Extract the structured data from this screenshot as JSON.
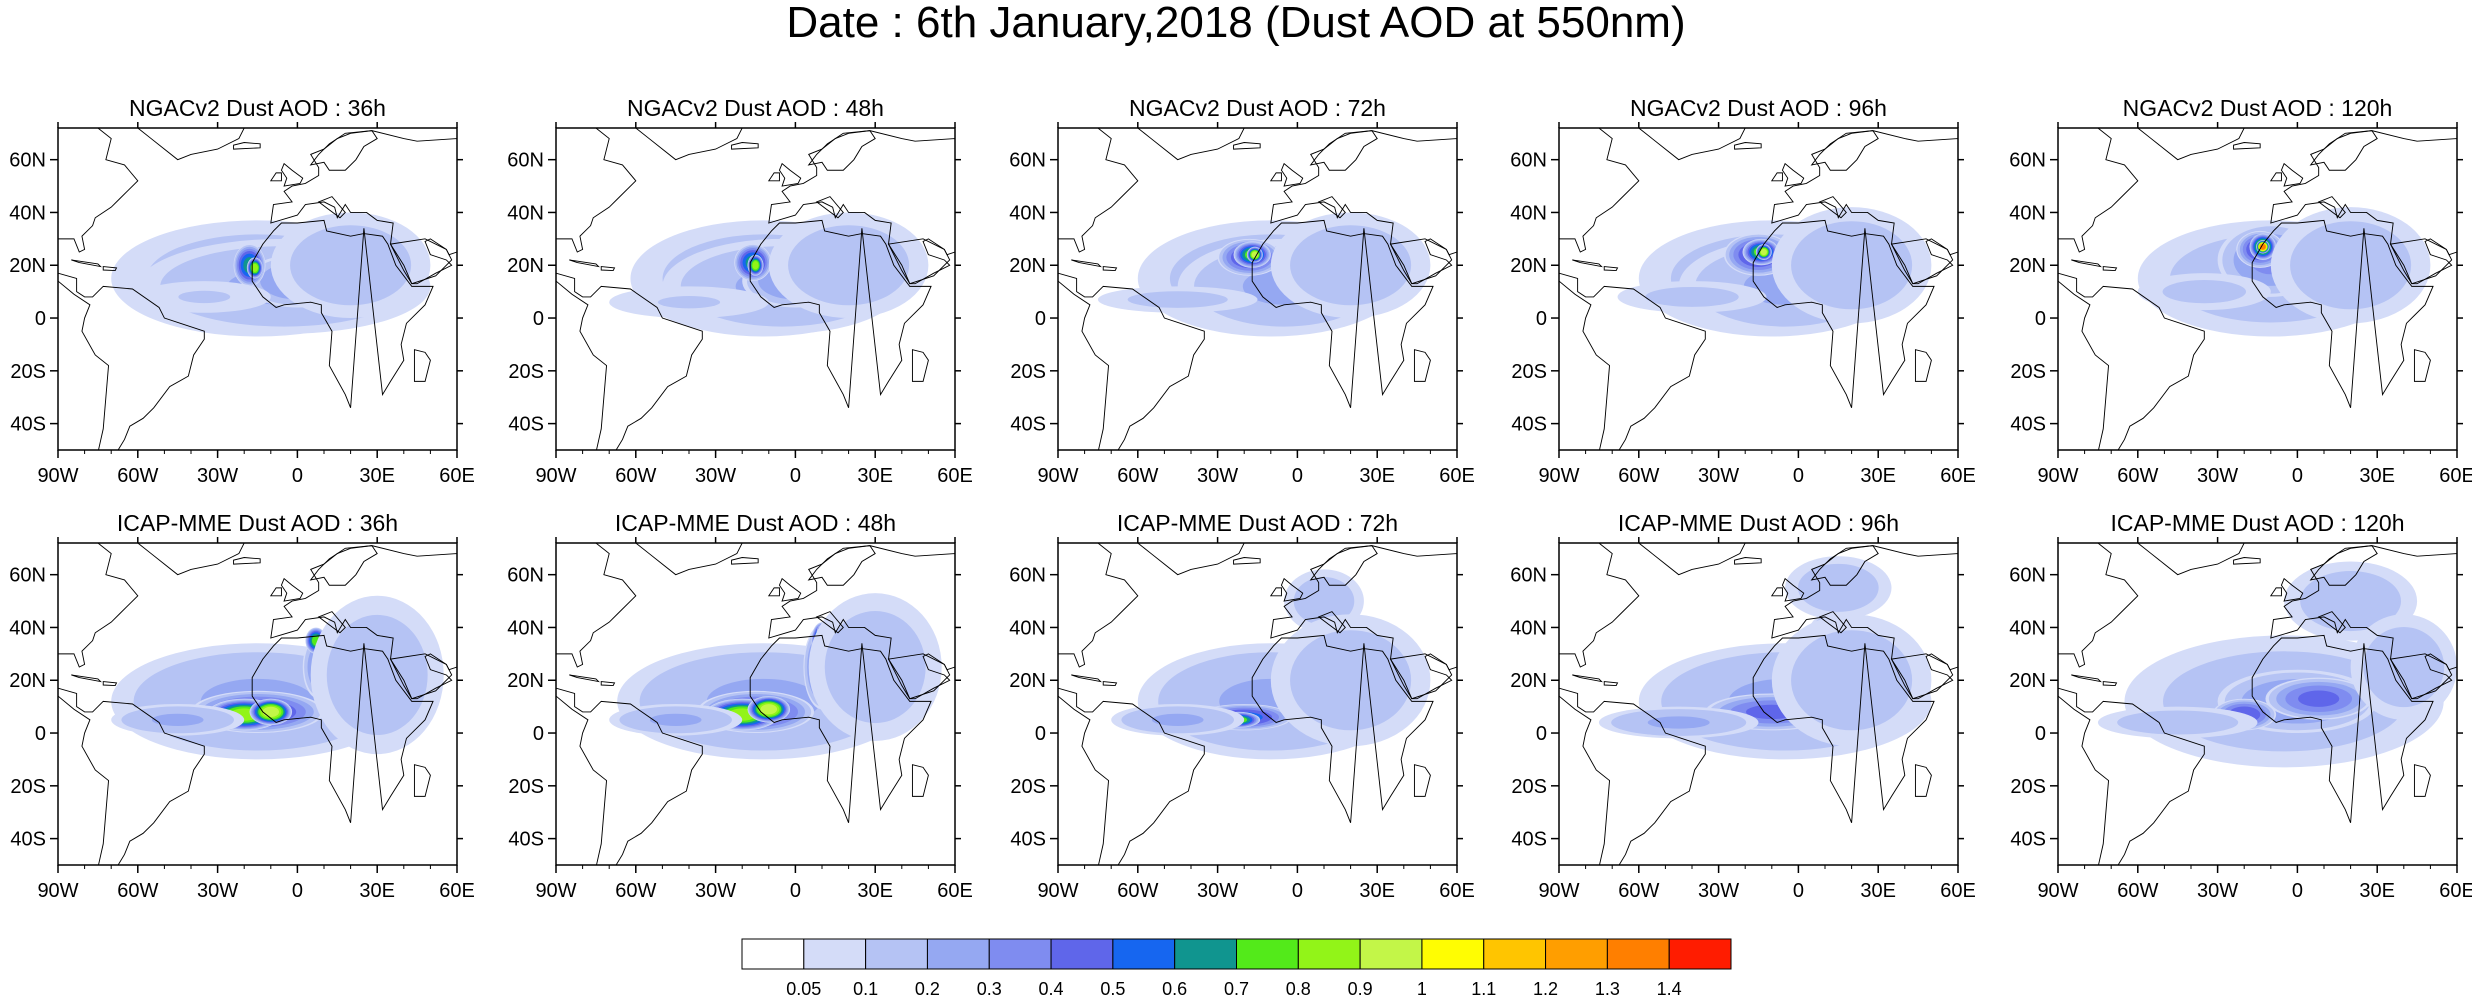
{
  "title": "Date : 6th January,2018 (Dust AOD at 550nm)",
  "lon_ticks": [
    "90W",
    "60W",
    "30W",
    "0",
    "30E",
    "60E"
  ],
  "lat_ticks": [
    "60N",
    "40N",
    "20N",
    "0",
    "20S",
    "40S"
  ],
  "extent": {
    "lon": [
      -90,
      60
    ],
    "lat": [
      -50,
      72
    ]
  },
  "panels": [
    {
      "title": "NGACv2 Dust AOD : 36h",
      "model": "NGACv2",
      "lead": "36h"
    },
    {
      "title": "NGACv2 Dust AOD : 48h",
      "model": "NGACv2",
      "lead": "48h"
    },
    {
      "title": "NGACv2 Dust AOD : 72h",
      "model": "NGACv2",
      "lead": "72h"
    },
    {
      "title": "NGACv2 Dust AOD : 96h",
      "model": "NGACv2",
      "lead": "96h"
    },
    {
      "title": "NGACv2 Dust AOD : 120h",
      "model": "NGACv2",
      "lead": "120h"
    },
    {
      "title": "ICAP-MME Dust AOD : 36h",
      "model": "ICAP-MME",
      "lead": "36h"
    },
    {
      "title": "ICAP-MME Dust AOD : 48h",
      "model": "ICAP-MME",
      "lead": "48h"
    },
    {
      "title": "ICAP-MME Dust AOD : 72h",
      "model": "ICAP-MME",
      "lead": "72h"
    },
    {
      "title": "ICAP-MME Dust AOD : 96h",
      "model": "ICAP-MME",
      "lead": "96h"
    },
    {
      "title": "ICAP-MME Dust AOD : 120h",
      "model": "ICAP-MME",
      "lead": "120h"
    }
  ],
  "colorbar": {
    "labels": [
      "0.05",
      "0.1",
      "0.2",
      "0.3",
      "0.4",
      "0.5",
      "0.6",
      "0.7",
      "0.8",
      "0.9",
      "1",
      "1.1",
      "1.2",
      "1.3",
      "1.4"
    ],
    "colors": [
      "#ffffff",
      "#d4dcf8",
      "#b5c3f4",
      "#95a8f2",
      "#7f8cf0",
      "#5f66ea",
      "#1666f0",
      "#10958f",
      "#53ea1a",
      "#92f418",
      "#c3f648",
      "#fffd02",
      "#ffc500",
      "#ff9e00",
      "#ff7f00",
      "#ff1c00"
    ]
  },
  "dust_blobs": [
    [
      [
        -15,
        15,
        55,
        22,
        0.15
      ],
      [
        -5,
        12,
        55,
        18,
        0.2
      ],
      [
        0,
        14,
        20,
        10,
        0.3
      ],
      [
        -18,
        20,
        6,
        8,
        0.6
      ],
      [
        -16,
        19,
        3,
        4,
        0.8
      ],
      [
        20,
        20,
        30,
        20,
        0.15
      ],
      [
        -35,
        8,
        25,
        6,
        0.1
      ]
    ],
    [
      [
        -12,
        15,
        50,
        22,
        0.15
      ],
      [
        -5,
        12,
        45,
        18,
        0.2
      ],
      [
        0,
        14,
        20,
        10,
        0.3
      ],
      [
        -16,
        21,
        7,
        7,
        0.6
      ],
      [
        -15,
        20,
        3,
        4,
        0.8
      ],
      [
        20,
        20,
        30,
        20,
        0.15
      ],
      [
        -40,
        6,
        30,
        6,
        0.1
      ]
    ],
    [
      [
        -10,
        15,
        50,
        22,
        0.15
      ],
      [
        -5,
        12,
        40,
        18,
        0.2
      ],
      [
        -18,
        23,
        12,
        7,
        0.5
      ],
      [
        -17,
        24,
        7,
        5,
        0.7
      ],
      [
        -16,
        24,
        3,
        3,
        0.9
      ],
      [
        20,
        20,
        30,
        20,
        0.15
      ],
      [
        -45,
        7,
        30,
        5,
        0.12
      ]
    ],
    [
      [
        -10,
        15,
        50,
        22,
        0.15
      ],
      [
        -5,
        12,
        40,
        18,
        0.2
      ],
      [
        -15,
        24,
        13,
        8,
        0.5
      ],
      [
        -14,
        25,
        7,
        5,
        0.7
      ],
      [
        -13,
        25,
        3,
        3,
        0.9
      ],
      [
        20,
        20,
        30,
        22,
        0.15
      ],
      [
        -40,
        8,
        28,
        6,
        0.12
      ]
    ],
    [
      [
        -10,
        15,
        50,
        22,
        0.15
      ],
      [
        -10,
        22,
        20,
        14,
        0.3
      ],
      [
        -14,
        26,
        9,
        7,
        0.5
      ],
      [
        -13,
        27,
        5,
        5,
        0.8
      ],
      [
        -13,
        27,
        2.5,
        2.5,
        1.3
      ],
      [
        20,
        20,
        30,
        22,
        0.15
      ],
      [
        -35,
        10,
        25,
        7,
        0.12
      ]
    ],
    [
      [
        -15,
        12,
        55,
        22,
        0.2
      ],
      [
        -15,
        8,
        25,
        8,
        0.5
      ],
      [
        -20,
        7,
        14,
        6,
        0.8
      ],
      [
        -10,
        8,
        8,
        5,
        0.9
      ],
      [
        8,
        25,
        6,
        12,
        0.3
      ],
      [
        7,
        35,
        4,
        5,
        0.7
      ],
      [
        30,
        22,
        25,
        30,
        0.15
      ],
      [
        -45,
        5,
        25,
        6,
        0.2
      ]
    ],
    [
      [
        -12,
        12,
        55,
        22,
        0.2
      ],
      [
        -15,
        8,
        22,
        8,
        0.5
      ],
      [
        -20,
        7,
        14,
        6,
        0.8
      ],
      [
        -10,
        9,
        8,
        5,
        0.9
      ],
      [
        10,
        25,
        7,
        16,
        0.4
      ],
      [
        10,
        35,
        4,
        7,
        0.9
      ],
      [
        10,
        38,
        2,
        3,
        1.1
      ],
      [
        30,
        25,
        25,
        28,
        0.15
      ],
      [
        -45,
        5,
        25,
        6,
        0.2
      ]
    ],
    [
      [
        -10,
        12,
        50,
        22,
        0.2
      ],
      [
        -20,
        6,
        18,
        5,
        0.5
      ],
      [
        -22,
        5,
        8,
        3,
        0.7
      ],
      [
        10,
        30,
        8,
        16,
        0.4
      ],
      [
        12,
        36,
        3,
        6,
        0.8
      ],
      [
        10,
        50,
        15,
        12,
        0.15
      ],
      [
        20,
        20,
        30,
        25,
        0.15
      ],
      [
        -45,
        5,
        25,
        6,
        0.2
      ]
    ],
    [
      [
        -5,
        12,
        55,
        22,
        0.2
      ],
      [
        -10,
        8,
        25,
        7,
        0.4
      ],
      [
        10,
        30,
        8,
        15,
        0.35
      ],
      [
        13,
        35,
        3,
        5,
        0.7
      ],
      [
        15,
        55,
        20,
        12,
        0.15
      ],
      [
        20,
        20,
        30,
        25,
        0.15
      ],
      [
        -45,
        4,
        30,
        6,
        0.2
      ]
    ],
    [
      [
        -5,
        12,
        60,
        25,
        0.15
      ],
      [
        0,
        12,
        30,
        12,
        0.3
      ],
      [
        -20,
        7,
        12,
        6,
        0.45
      ],
      [
        8,
        13,
        20,
        8,
        0.4
      ],
      [
        20,
        50,
        25,
        15,
        0.15
      ],
      [
        40,
        25,
        20,
        20,
        0.15
      ],
      [
        -45,
        4,
        30,
        6,
        0.15
      ]
    ]
  ]
}
